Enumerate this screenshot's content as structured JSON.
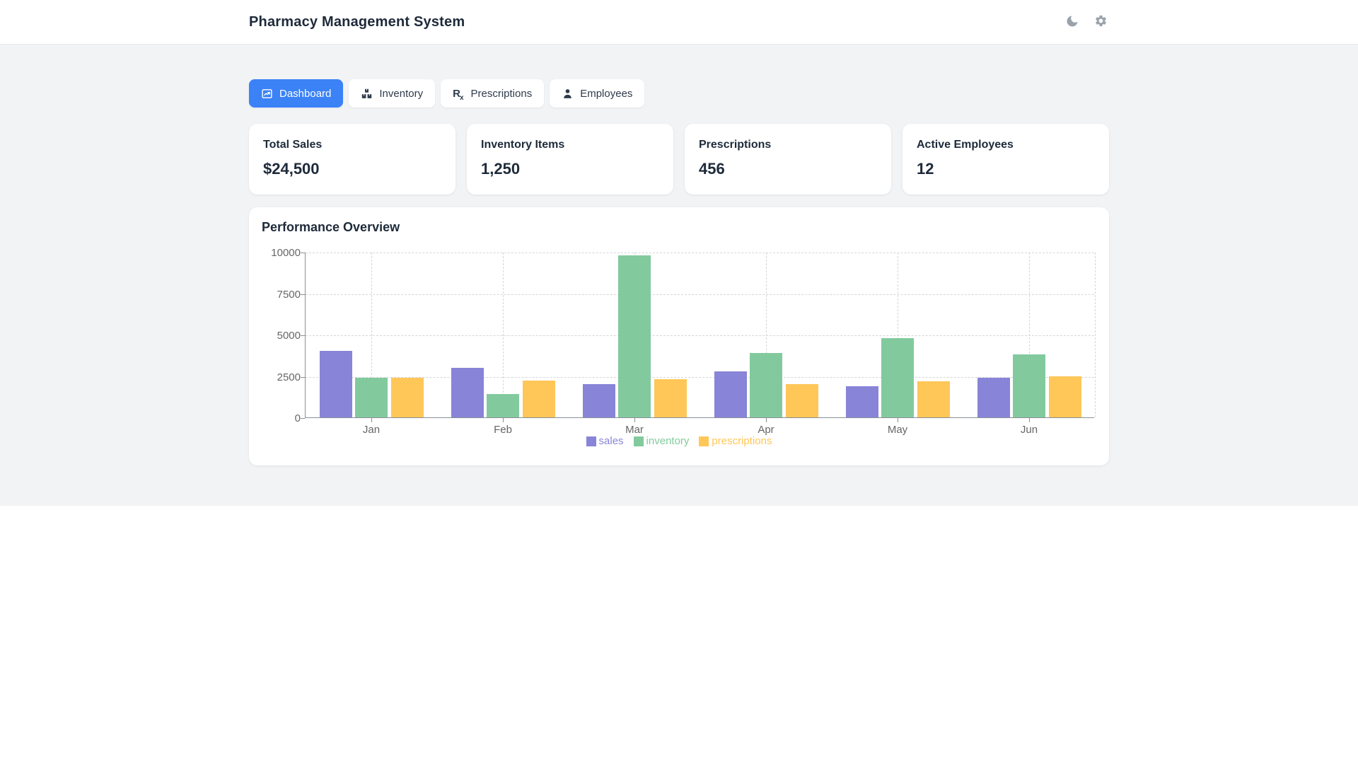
{
  "header": {
    "title": "Pharmacy Management System",
    "actions": [
      {
        "icon": "moon-icon"
      },
      {
        "icon": "gear-icon"
      }
    ]
  },
  "tabs": [
    {
      "label": "Dashboard",
      "icon": "chart-line-icon",
      "active": true
    },
    {
      "label": "Inventory",
      "icon": "boxes-icon",
      "active": false
    },
    {
      "label": "Prescriptions",
      "icon": "rx-icon",
      "active": false
    },
    {
      "label": "Employees",
      "icon": "user-icon",
      "active": false
    }
  ],
  "stats": [
    {
      "label": "Total Sales",
      "value": "$24,500"
    },
    {
      "label": "Inventory Items",
      "value": "1,250"
    },
    {
      "label": "Prescriptions",
      "value": "456"
    },
    {
      "label": "Active Employees",
      "value": "12"
    }
  ],
  "chart_section": {
    "title": "Performance Overview"
  },
  "chart_data": {
    "type": "bar",
    "title": "Performance Overview",
    "categories": [
      "Jan",
      "Feb",
      "Mar",
      "Apr",
      "May",
      "Jun"
    ],
    "series": [
      {
        "name": "sales",
        "color": "#8884d8",
        "values": [
          4000,
          3000,
          2000,
          2780,
          1890,
          2390
        ]
      },
      {
        "name": "inventory",
        "color": "#82ca9d",
        "values": [
          2400,
          1398,
          9800,
          3908,
          4800,
          3800
        ]
      },
      {
        "name": "prescriptions",
        "color": "#ffc658",
        "values": [
          2400,
          2210,
          2290,
          2000,
          2181,
          2500
        ]
      }
    ],
    "ylim": [
      0,
      10000
    ],
    "yticks": [
      0,
      2500,
      5000,
      7500,
      10000
    ],
    "grid": true,
    "grid_style": "dashed",
    "legend_position": "bottom"
  },
  "colors": {
    "accent_blue": "#3b82f6",
    "page_background": "#f1f3f5",
    "text_dark": "#1e2a3a",
    "axis_text": "#666666"
  }
}
